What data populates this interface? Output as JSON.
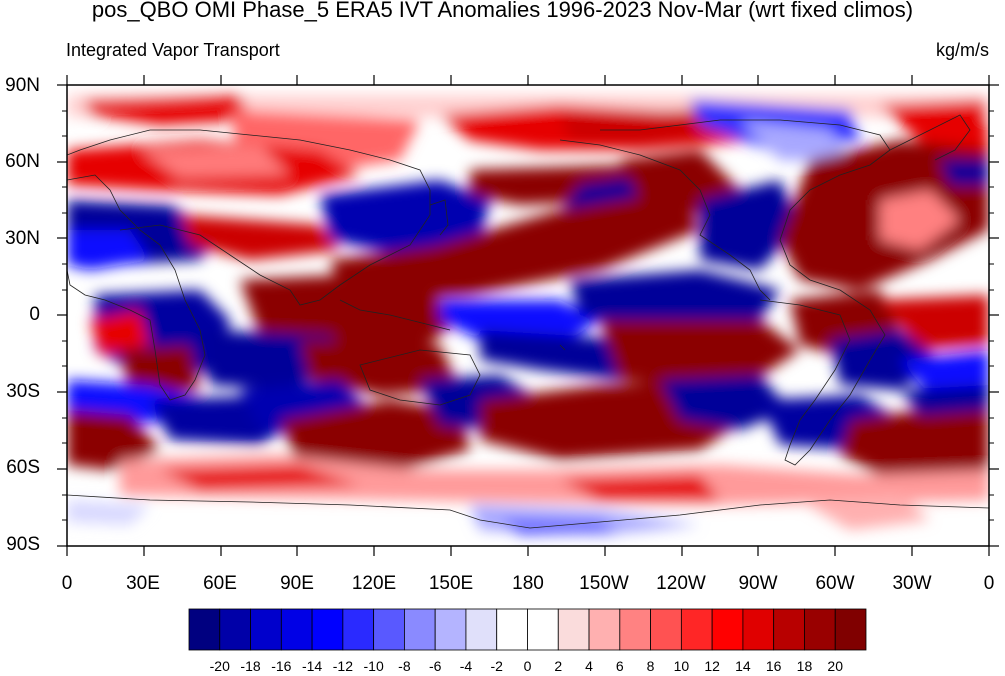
{
  "title": "pos_QBO OMI Phase_5 ERA5 IVT Anomalies 1996-2023 Nov-Mar (wrt fixed climos)",
  "subtitle_left": "Integrated Vapor Transport",
  "units": "kg/m/s",
  "y_ticks": [
    "90N",
    "60N",
    "30N",
    "0",
    "30S",
    "60S",
    "90S"
  ],
  "x_ticks": [
    "0",
    "30E",
    "60E",
    "90E",
    "120E",
    "150E",
    "180",
    "150W",
    "120W",
    "90W",
    "60W",
    "30W",
    "0"
  ],
  "colorbar": {
    "labels": [
      "-20",
      "-18",
      "-16",
      "-14",
      "-12",
      "-10",
      "-8",
      "-6",
      "-4",
      "-2",
      "0",
      "2",
      "4",
      "6",
      "8",
      "10",
      "12",
      "14",
      "16",
      "18",
      "20"
    ],
    "colors": [
      "#000080",
      "#0000a8",
      "#0000cc",
      "#0000e6",
      "#0000ff",
      "#2a2aff",
      "#5959ff",
      "#8a8aff",
      "#b4b4ff",
      "#e0e0fa",
      "#ffffff",
      "#ffffff",
      "#fadcdc",
      "#ffb0b0",
      "#ff8282",
      "#ff5252",
      "#ff2626",
      "#ff0000",
      "#e00000",
      "#b80000",
      "#990000",
      "#800000"
    ]
  },
  "map": {
    "projection": "cylindrical-equidistant",
    "lon_range": [
      0,
      360
    ],
    "lat_range": [
      -90,
      90
    ],
    "palette": {
      "neutral": "#ffffff",
      "strong_positive": "#8b0000",
      "positive": "#e60000",
      "weak_positive": "#ff9a9a",
      "strong_negative": "#000099",
      "negative": "#1010ff",
      "weak_negative": "#a8a8ff"
    },
    "coastline_color": "#222222"
  }
}
